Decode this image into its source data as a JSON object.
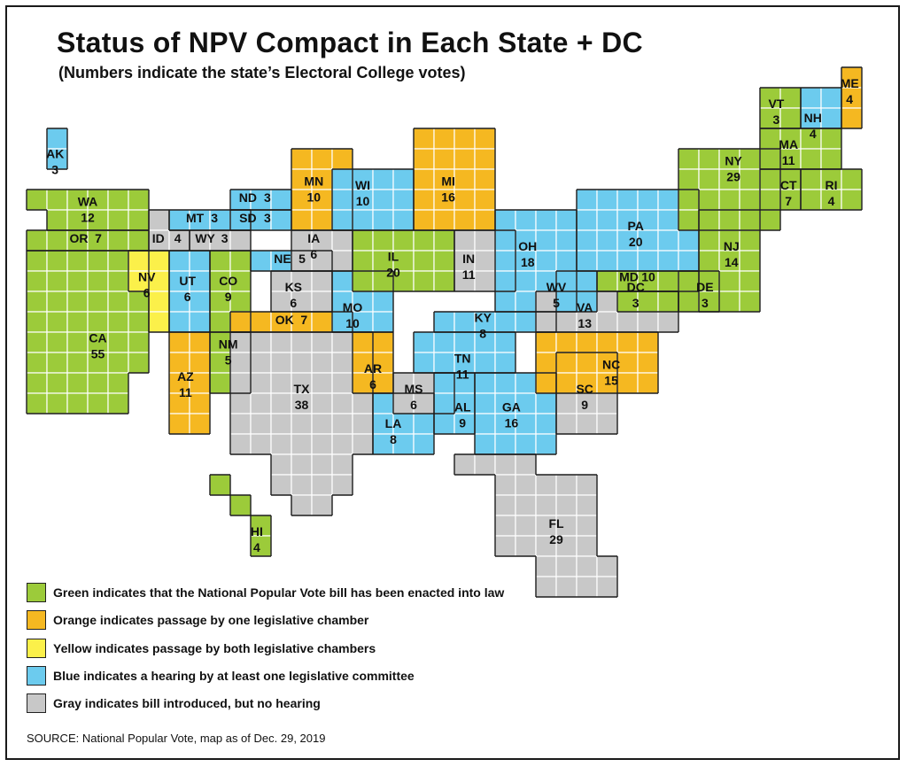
{
  "title": "Status of NPV Compact in Each State + DC",
  "subtitle": "(Numbers indicate the state’s Electoral College votes)",
  "colors": {
    "enacted": "#9ccb3a",
    "one_chamber": "#f5b821",
    "both_chambers": "#fbf04a",
    "hearing": "#6ccbee",
    "introduced": "#c8c8c8"
  },
  "legend": [
    {
      "status": "enacted",
      "label": "Green indicates that the National Popular Vote bill has been enacted into law"
    },
    {
      "status": "one_chamber",
      "label": "Orange indicates passage by one legislative chamber"
    },
    {
      "status": "both_chambers",
      "label": "Yellow indicates passage by both legislative chambers"
    },
    {
      "status": "hearing",
      "label": "Blue indicates a hearing by at least one legislative committee"
    },
    {
      "status": "introduced",
      "label": "Gray indicates bill introduced, but no hearing"
    }
  ],
  "source": "SOURCE: National Popular Vote, map as of Dec. 29, 2019",
  "states": [
    {
      "abbr": "AK",
      "votes": "3",
      "status": "hearing"
    },
    {
      "abbr": "WA",
      "votes": "12",
      "status": "enacted"
    },
    {
      "abbr": "OR",
      "votes": "7",
      "status": "enacted"
    },
    {
      "abbr": "CA",
      "votes": "55",
      "status": "enacted"
    },
    {
      "abbr": "NV",
      "votes": "6",
      "status": "both_chambers"
    },
    {
      "abbr": "ID",
      "votes": "4",
      "status": "introduced"
    },
    {
      "abbr": "MT",
      "votes": "3",
      "status": "hearing"
    },
    {
      "abbr": "WY",
      "votes": "3",
      "status": "introduced"
    },
    {
      "abbr": "UT",
      "votes": "6",
      "status": "hearing"
    },
    {
      "abbr": "CO",
      "votes": "9",
      "status": "enacted"
    },
    {
      "abbr": "AZ",
      "votes": "11",
      "status": "one_chamber"
    },
    {
      "abbr": "NM",
      "votes": "5",
      "status": "enacted"
    },
    {
      "abbr": "ND",
      "votes": "3",
      "status": "hearing"
    },
    {
      "abbr": "SD",
      "votes": "3",
      "status": "hearing"
    },
    {
      "abbr": "NE",
      "votes": "5",
      "status": "hearing"
    },
    {
      "abbr": "KS",
      "votes": "6",
      "status": "introduced"
    },
    {
      "abbr": "OK",
      "votes": "7",
      "status": "one_chamber"
    },
    {
      "abbr": "TX",
      "votes": "38",
      "status": "introduced"
    },
    {
      "abbr": "MN",
      "votes": "10",
      "status": "one_chamber"
    },
    {
      "abbr": "IA",
      "votes": "6",
      "status": "introduced"
    },
    {
      "abbr": "MO",
      "votes": "10",
      "status": "hearing"
    },
    {
      "abbr": "AR",
      "votes": "6",
      "status": "one_chamber"
    },
    {
      "abbr": "LA",
      "votes": "8",
      "status": "hearing"
    },
    {
      "abbr": "WI",
      "votes": "10",
      "status": "hearing"
    },
    {
      "abbr": "IL",
      "votes": "20",
      "status": "enacted"
    },
    {
      "abbr": "MI",
      "votes": "16",
      "status": "one_chamber"
    },
    {
      "abbr": "IN",
      "votes": "11",
      "status": "introduced"
    },
    {
      "abbr": "OH",
      "votes": "18",
      "status": "hearing"
    },
    {
      "abbr": "KY",
      "votes": "8",
      "status": "hearing"
    },
    {
      "abbr": "TN",
      "votes": "11",
      "status": "hearing"
    },
    {
      "abbr": "MS",
      "votes": "6",
      "status": "introduced"
    },
    {
      "abbr": "AL",
      "votes": "9",
      "status": "hearing"
    },
    {
      "abbr": "GA",
      "votes": "16",
      "status": "hearing"
    },
    {
      "abbr": "FL",
      "votes": "29",
      "status": "introduced"
    },
    {
      "abbr": "SC",
      "votes": "9",
      "status": "introduced"
    },
    {
      "abbr": "NC",
      "votes": "15",
      "status": "one_chamber"
    },
    {
      "abbr": "VA",
      "votes": "13",
      "status": "introduced"
    },
    {
      "abbr": "WV",
      "votes": "5",
      "status": "hearing"
    },
    {
      "abbr": "PA",
      "votes": "20",
      "status": "hearing"
    },
    {
      "abbr": "MD",
      "votes": "10",
      "status": "enacted"
    },
    {
      "abbr": "DC",
      "votes": "3",
      "status": "enacted"
    },
    {
      "abbr": "DE",
      "votes": "3",
      "status": "enacted"
    },
    {
      "abbr": "NJ",
      "votes": "14",
      "status": "enacted"
    },
    {
      "abbr": "NY",
      "votes": "29",
      "status": "enacted"
    },
    {
      "abbr": "CT",
      "votes": "7",
      "status": "enacted"
    },
    {
      "abbr": "RI",
      "votes": "4",
      "status": "enacted"
    },
    {
      "abbr": "MA",
      "votes": "11",
      "status": "enacted"
    },
    {
      "abbr": "VT",
      "votes": "3",
      "status": "enacted"
    },
    {
      "abbr": "NH",
      "votes": "4",
      "status": "hearing"
    },
    {
      "abbr": "ME",
      "votes": "4",
      "status": "one_chamber"
    },
    {
      "abbr": "HI",
      "votes": "4",
      "status": "enacted"
    }
  ]
}
